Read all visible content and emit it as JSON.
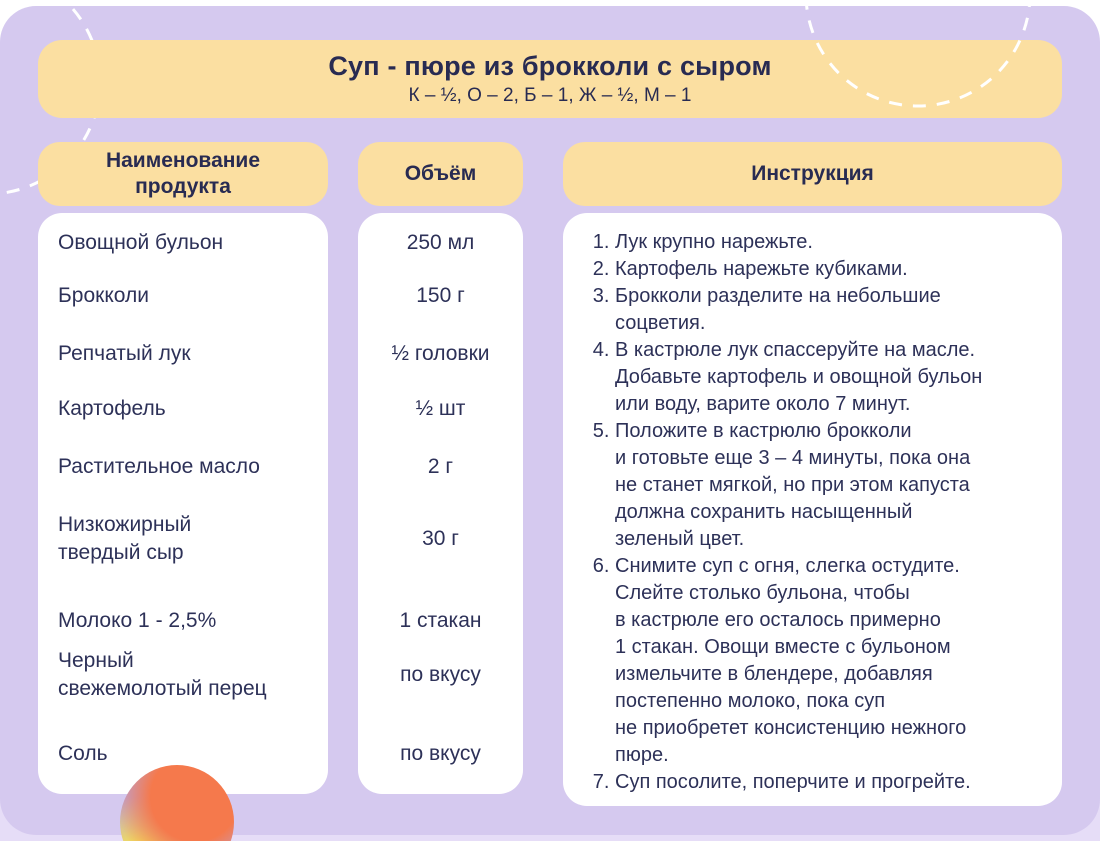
{
  "header": {
    "title": "Суп - пюре из брокколи с сыром",
    "subtitle": "К – ½, О – 2, Б – 1, Ж – ½, М – 1"
  },
  "table": {
    "name_header": "Наименование\nпродукта",
    "volume_header": "Объём",
    "instructions_header": "Инструкция",
    "rows": [
      {
        "name": "Овощной бульон",
        "volume": "250 мл"
      },
      {
        "name": "Брокколи",
        "volume": "150 г"
      },
      {
        "name": "Репчатый лук",
        "volume": "½ головки"
      },
      {
        "name": "Картофель",
        "volume": "½ шт"
      },
      {
        "name": "Растительное масло",
        "volume": "2 г"
      },
      {
        "name": "Низкожирный\nтвердый сыр",
        "volume": "30 г"
      },
      {
        "name": "Молоко 1 - 2,5%",
        "volume": "1 стакан"
      },
      {
        "name": "Черный\nсвежемолотый перец",
        "volume": "по вкусу"
      },
      {
        "name": "Соль",
        "volume": "по вкусу"
      }
    ]
  },
  "instructions": [
    "Лук крупно нарежьте.",
    "Картофель нарежьте кубиками.",
    "Брокколи разделите на небольшие\nсоцветия.",
    "В кастрюле лук спассеруйте на масле.\nДобавьте картофель и овощной бульон\nили воду, варите около 7 минут.",
    "Положите в кастрюлю брокколи\nи готовьте еще 3 – 4 минуты, пока она\nне станет мягкой, но при этом капуста\nдолжна сохранить насыщенный\nзеленый цвет.",
    "Снимите суп с огня, слегка остудите.\nСлейте столько бульона, чтобы\nв кастрюле его осталось примерно\n1 стакан. Овощи вместе с бульоном\nизмельчите в блендере, добавляя\nпостепенно молоко, пока суп\nне приобретет консистенцию нежного\nпюре.",
    "Суп посолите, поперчите и прогрейте."
  ],
  "colors": {
    "page_background": "#FFFFFF",
    "card_background": "#D5C9EF",
    "bottom_strip": "#E6DDF7",
    "accent_yellow": "#FBDFA1",
    "panel_white": "#FFFFFF",
    "text_navy": "#2D3158",
    "dashed_circle": "#FFFFFF",
    "orb_orange": "#F5794C",
    "orb_purple": "#B9A5DB",
    "orb_yellow": "#F7E14F"
  }
}
